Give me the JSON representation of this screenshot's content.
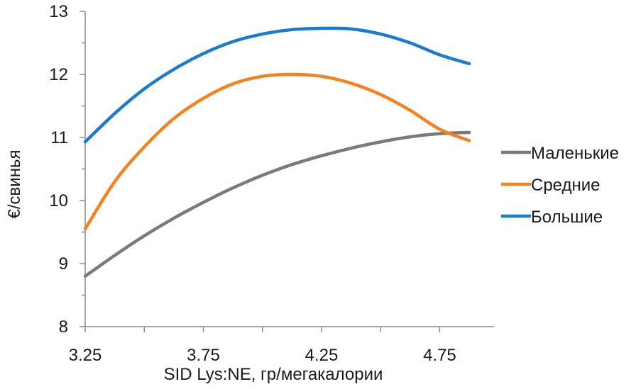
{
  "chart_data": {
    "type": "line",
    "title": "",
    "xlabel": "SID Lys:NE, гр/мегакалории",
    "ylabel": "€/свинья",
    "xlim": [
      3.25,
      4.98
    ],
    "ylim": [
      8,
      13
    ],
    "xticks": [
      3.25,
      3.75,
      4.25,
      4.75
    ],
    "xtick_labels": [
      "3.25",
      "3.75",
      "4.25",
      "4.75"
    ],
    "yticks": [
      8,
      9,
      10,
      11,
      12,
      13
    ],
    "ytick_labels": [
      "8",
      "9",
      "10",
      "11",
      "12",
      "13"
    ],
    "grid": false,
    "legend_position": "right",
    "x": [
      3.25,
      3.375,
      3.5,
      3.625,
      3.75,
      3.875,
      4.0,
      4.125,
      4.25,
      4.375,
      4.5,
      4.625,
      4.75,
      4.875
    ],
    "series": [
      {
        "name": "Маленькие",
        "color": "#7f7778",
        "values": [
          8.8,
          9.13,
          9.44,
          9.72,
          9.97,
          10.2,
          10.4,
          10.57,
          10.71,
          10.83,
          10.93,
          11.01,
          11.06,
          11.08
        ]
      },
      {
        "name": "Средние",
        "color": "#f5811f",
        "values": [
          9.55,
          10.3,
          10.85,
          11.3,
          11.62,
          11.85,
          11.97,
          12.0,
          11.97,
          11.86,
          11.68,
          11.43,
          11.13,
          10.95
        ]
      },
      {
        "name": "Большие",
        "color": "#1a7bcf",
        "values": [
          10.93,
          11.38,
          11.77,
          12.08,
          12.33,
          12.52,
          12.64,
          12.71,
          12.73,
          12.72,
          12.64,
          12.5,
          12.31,
          12.17
        ]
      }
    ]
  }
}
